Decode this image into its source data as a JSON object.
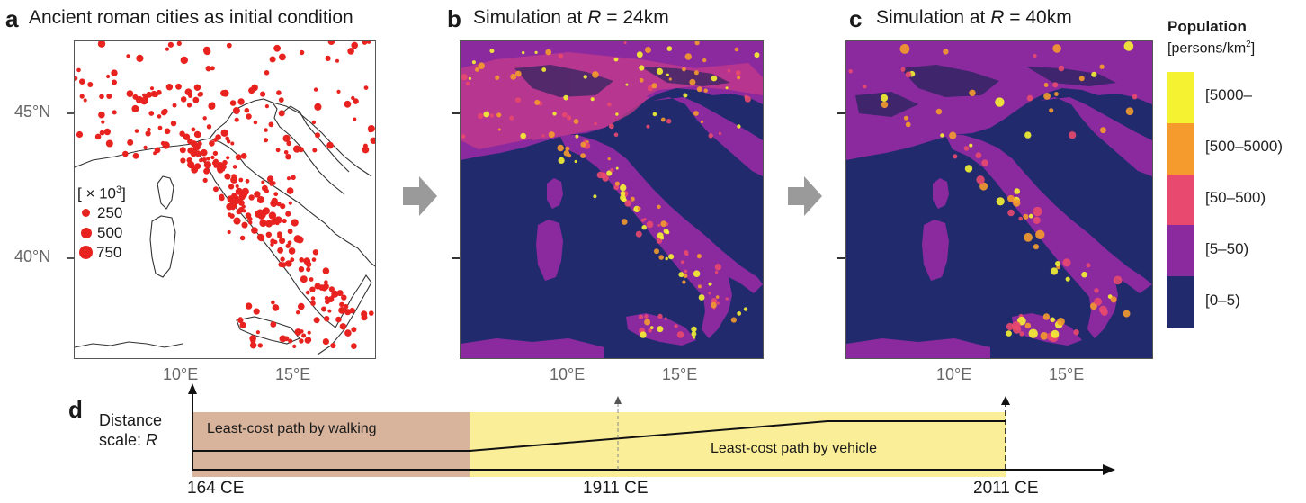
{
  "panels": {
    "a": {
      "letter": "a",
      "title": "Ancient roman cities as initial condition"
    },
    "b": {
      "letter": "b",
      "title_pre": "Simulation at ",
      "title_R": "R",
      "title_post": " = 24km"
    },
    "c": {
      "letter": "c",
      "title_pre": "Simulation at ",
      "title_R": "R",
      "title_post": " = 40km"
    },
    "d": {
      "letter": "d"
    }
  },
  "axes": {
    "y_ticks": [
      "45°N",
      "40°N"
    ],
    "x_ticks": [
      "10°E",
      "15°E"
    ]
  },
  "legend_a": {
    "header": "[ × 10",
    "header_sup": "3",
    "header_close": "]",
    "sizes": [
      "250",
      "500",
      "750"
    ],
    "color": "#e8221f"
  },
  "colorbar": {
    "title": "Population",
    "unit_pre": "[persons/km",
    "unit_sup": "2",
    "unit_post": "]",
    "bins": [
      {
        "label": "[5000–",
        "color": "#f5f232"
      },
      {
        "label": "[500–5000)",
        "color": "#f59b2e"
      },
      {
        "label": "[50–500)",
        "color": "#e8496e"
      },
      {
        "label": "[5–50)",
        "color": "#8a2a9e"
      },
      {
        "label": "[0–5)",
        "color": "#222a6e"
      }
    ]
  },
  "timeline": {
    "y_label_1": "Distance",
    "y_label_2": "scale: ",
    "y_label_R": "R",
    "walking": "Least-cost path by walking",
    "vehicle": "Least-cost path by vehicle",
    "dates": [
      "164 CE",
      "1911 CE",
      "2011 CE"
    ],
    "walking_color": "#d8b49c",
    "vehicle_color": "#fbee98"
  }
}
